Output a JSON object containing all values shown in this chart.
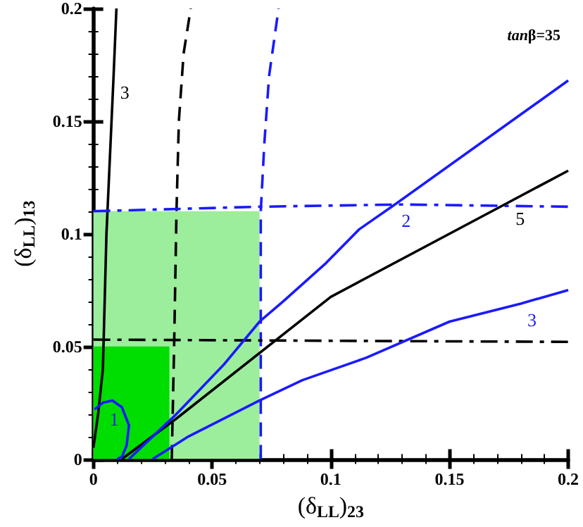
{
  "chart_data": {
    "type": "line",
    "xlabel": "(δ$_{LL}$)$_{23}$",
    "ylabel": "(δ$_{LL}$)$_{13}$",
    "xlim": [
      0,
      0.2
    ],
    "ylim": [
      0,
      0.2
    ],
    "xticks": [
      0,
      0.05,
      0.1,
      0.15,
      0.2
    ],
    "yticks": [
      0,
      0.05,
      0.1,
      0.15,
      0.2
    ],
    "grid": false,
    "marker": "none",
    "series": [
      {
        "type": "area",
        "color": "#9cee9c",
        "x": [
          0,
          0.07
        ],
        "values": [
          0.11,
          0.11
        ]
      },
      {
        "type": "area",
        "color": "#00dd00",
        "x": [
          0,
          0.032
        ],
        "values": [
          0.05,
          0.05
        ]
      },
      {
        "name": "3",
        "color": "#000000",
        "line_style": "solid",
        "x": [
          0,
          0.002,
          0.004,
          0.0055,
          0.0085,
          0.0097
        ],
        "values": [
          0.005,
          0.02,
          0.04,
          0.1,
          0.17,
          0.2
        ]
      },
      {
        "color": "#000000",
        "line_style": "dashed",
        "x": [
          0.033,
          0.034,
          0.035,
          0.036,
          0.038,
          0.041
        ],
        "values": [
          0,
          0.05,
          0.11,
          0.15,
          0.18,
          0.2
        ]
      },
      {
        "color": "#1a1aff",
        "line_style": "dashed",
        "x": [
          0.0705,
          0.0705,
          0.072,
          0.074,
          0.078
        ],
        "values": [
          0,
          0.11,
          0.14,
          0.17,
          0.2
        ]
      },
      {
        "color": "#1a1aff",
        "line_style": "dashdot",
        "x": [
          0,
          0.07,
          0.13,
          0.2
        ],
        "values": [
          0.11,
          0.112,
          0.113,
          0.112
        ]
      },
      {
        "color": "#000000",
        "line_style": "dashdot",
        "x": [
          0,
          0.2
        ],
        "values": [
          0.053,
          0.052
        ]
      },
      {
        "name": "5",
        "color": "#000000",
        "line_style": "solid",
        "x": [
          0.012,
          0.035,
          0.1,
          0.175,
          0.2
        ],
        "values": [
          0,
          0.018,
          0.072,
          0.114,
          0.128
        ]
      },
      {
        "name": "2",
        "color": "#1a1aff",
        "line_style": "solid",
        "x": [
          0.015,
          0.035,
          0.055,
          0.07,
          0.08,
          0.098,
          0.112,
          0.127,
          0.2
        ],
        "values": [
          0,
          0.02,
          0.042,
          0.061,
          0.07,
          0.087,
          0.102,
          0.113,
          0.168
        ]
      },
      {
        "name": "3",
        "color": "#1a1aff",
        "line_style": "solid",
        "x": [
          0.025,
          0.04,
          0.07,
          0.088,
          0.115,
          0.15,
          0.18,
          0.2
        ],
        "values": [
          0,
          0.01,
          0.026,
          0.035,
          0.045,
          0.061,
          0.069,
          0.075
        ]
      },
      {
        "name": "1",
        "color": "#1a1aff",
        "line_style": "solid",
        "x": [
          0.01,
          0.012,
          0.014,
          0.015,
          0.012,
          0.008,
          0.004,
          0.0005
        ],
        "values": [
          0,
          0.001,
          0.006,
          0.015,
          0.023,
          0.026,
          0.025,
          0.022
        ]
      }
    ],
    "annotations": [
      "tanβ=35"
    ]
  }
}
